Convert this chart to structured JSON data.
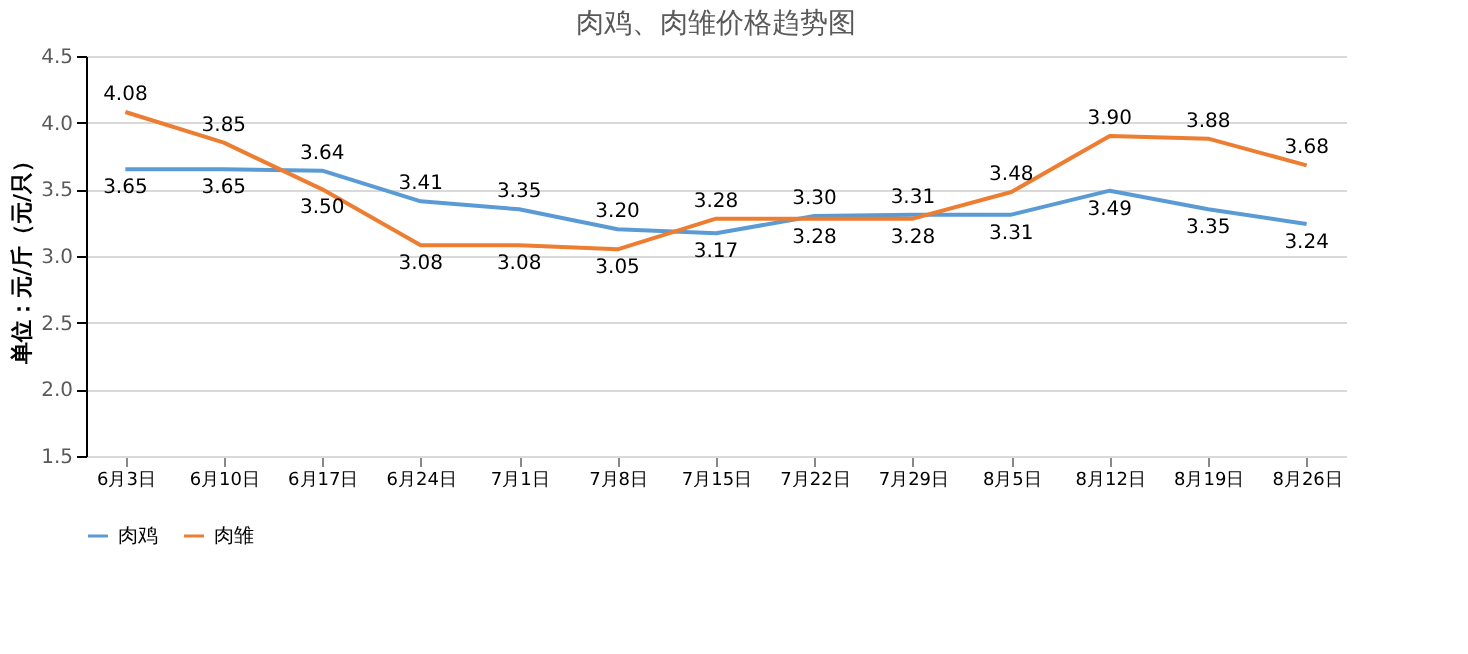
{
  "chart_data": {
    "type": "line",
    "title": "肉鸡、肉雏价格趋势图",
    "ylabel": "单位：元/斤（元/只）",
    "categories": [
      "6月3日",
      "6月10日",
      "6月17日",
      "6月24日",
      "7月1日",
      "7月8日",
      "7月15日",
      "7月22日",
      "7月29日",
      "8月5日",
      "8月12日",
      "8月19日",
      "8月26日"
    ],
    "series": [
      {
        "name": "肉鸡",
        "color": "#5b9bd5",
        "values": [
          3.65,
          3.65,
          3.64,
          3.41,
          3.35,
          3.2,
          3.17,
          3.3,
          3.31,
          3.31,
          3.49,
          3.35,
          3.24
        ],
        "value_labels": [
          "3.65",
          "3.65",
          "3.64",
          "3.41",
          "3.35",
          "3.20",
          "3.17",
          "3.30",
          "3.31",
          "3.31",
          "3.49",
          "3.35",
          "3.24"
        ]
      },
      {
        "name": "肉雏",
        "color": "#ed7d31",
        "values": [
          4.08,
          3.85,
          3.5,
          3.08,
          3.08,
          3.05,
          3.28,
          3.28,
          3.28,
          3.48,
          3.9,
          3.88,
          3.68
        ],
        "value_labels": [
          "4.08",
          "3.85",
          "3.50",
          "3.08",
          "3.08",
          "3.05",
          "3.28",
          "3.28",
          "3.28",
          "3.48",
          "3.90",
          "3.88",
          "3.68"
        ]
      }
    ],
    "ylim": [
      1.5,
      4.5
    ],
    "yticks": [
      {
        "value": 1.5,
        "label": "1.5"
      },
      {
        "value": 2.0,
        "label": "2.0"
      },
      {
        "value": 2.5,
        "label": "2.5"
      },
      {
        "value": 3.0,
        "label": "3.0"
      },
      {
        "value": 3.5,
        "label": "3.5"
      },
      {
        "value": 4.0,
        "label": "4.0"
      },
      {
        "value": 4.5,
        "label": "4.5"
      }
    ],
    "grid": "y",
    "legend": "bottom",
    "marker": "none",
    "line_style": "solid"
  }
}
